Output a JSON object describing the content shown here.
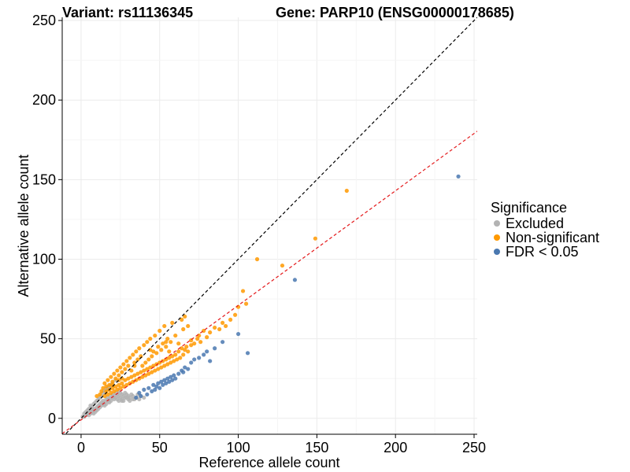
{
  "chart_data": {
    "type": "scatter",
    "title_left": "Variant: rs11136345",
    "title_right": "Gene: PARP10 (ENSG00000178685)",
    "xlabel": "Reference allele count",
    "ylabel": "Alternative allele count",
    "xlim": [
      -12,
      252
    ],
    "ylim": [
      -10,
      252
    ],
    "x_ticks": [
      0,
      50,
      100,
      150,
      200,
      250
    ],
    "y_ticks": [
      0,
      50,
      100,
      150,
      200,
      250
    ],
    "grid": true,
    "legend": {
      "title": "Significance",
      "position": "right",
      "entries": [
        {
          "label": "Excluded",
          "color": "#b3b3b3"
        },
        {
          "label": "Non-significant",
          "color": "#ff9900"
        },
        {
          "label": "FDR < 0.05",
          "color": "#4a78b0"
        }
      ]
    },
    "reference_lines": [
      {
        "name": "identity",
        "slope": 1,
        "intercept": 0,
        "color": "#000000",
        "style": "dashed"
      },
      {
        "name": "fit",
        "slope": 0.72,
        "intercept": -1,
        "color": "#e41a1c",
        "style": "dashed"
      }
    ],
    "series": [
      {
        "name": "Excluded",
        "color": "#b3b3b3",
        "points": [
          [
            2,
            1
          ],
          [
            3,
            2
          ],
          [
            4,
            3
          ],
          [
            5,
            2
          ],
          [
            5,
            4
          ],
          [
            6,
            3
          ],
          [
            6,
            5
          ],
          [
            7,
            4
          ],
          [
            7,
            6
          ],
          [
            8,
            5
          ],
          [
            8,
            3
          ],
          [
            9,
            6
          ],
          [
            9,
            4
          ],
          [
            10,
            7
          ],
          [
            10,
            5
          ],
          [
            11,
            8
          ],
          [
            11,
            6
          ],
          [
            12,
            9
          ],
          [
            12,
            7
          ],
          [
            13,
            10
          ],
          [
            13,
            8
          ],
          [
            14,
            9
          ],
          [
            14,
            11
          ],
          [
            15,
            10
          ],
          [
            15,
            8
          ],
          [
            16,
            12
          ],
          [
            16,
            9
          ],
          [
            17,
            11
          ],
          [
            17,
            13
          ],
          [
            18,
            10
          ],
          [
            18,
            12
          ],
          [
            19,
            14
          ],
          [
            19,
            11
          ],
          [
            20,
            13
          ],
          [
            20,
            15
          ],
          [
            21,
            12
          ],
          [
            21,
            14
          ],
          [
            22,
            13
          ],
          [
            22,
            16
          ],
          [
            23,
            12
          ],
          [
            23,
            15
          ],
          [
            24,
            14
          ],
          [
            24,
            17
          ],
          [
            25,
            13
          ],
          [
            25,
            16
          ],
          [
            26,
            15
          ],
          [
            26,
            12
          ],
          [
            27,
            14
          ],
          [
            28,
            13
          ],
          [
            28,
            16
          ],
          [
            29,
            15
          ],
          [
            30,
            14
          ],
          [
            30,
            12
          ],
          [
            31,
            13
          ],
          [
            32,
            15
          ],
          [
            33,
            14
          ],
          [
            34,
            12
          ],
          [
            35,
            13
          ],
          [
            36,
            15
          ],
          [
            38,
            14
          ],
          [
            8,
            9
          ],
          [
            10,
            11
          ],
          [
            12,
            13
          ],
          [
            14,
            16
          ],
          [
            16,
            18
          ],
          [
            18,
            20
          ],
          [
            20,
            22
          ],
          [
            22,
            24
          ],
          [
            4,
            5
          ],
          [
            6,
            8
          ],
          [
            9,
            10
          ],
          [
            11,
            12
          ],
          [
            13,
            14
          ],
          [
            15,
            17
          ],
          [
            17,
            19
          ],
          [
            19,
            21
          ],
          [
            3,
            4
          ],
          [
            7,
            7
          ],
          [
            24,
            11
          ],
          [
            26,
            11
          ],
          [
            29,
            13
          ],
          [
            31,
            11
          ],
          [
            33,
            12
          ],
          [
            1,
            1
          ],
          [
            2,
            3
          ],
          [
            5,
            6
          ],
          [
            27,
            11
          ],
          [
            37,
            12
          ],
          [
            40,
            13
          ]
        ]
      },
      {
        "name": "Non-significant",
        "color": "#ff9900",
        "points": [
          [
            10,
            14
          ],
          [
            12,
            15
          ],
          [
            13,
            17
          ],
          [
            14,
            19
          ],
          [
            15,
            14
          ],
          [
            15,
            22
          ],
          [
            16,
            17
          ],
          [
            16,
            20
          ],
          [
            17,
            15
          ],
          [
            17,
            24
          ],
          [
            18,
            18
          ],
          [
            18,
            21
          ],
          [
            19,
            16
          ],
          [
            19,
            26
          ],
          [
            20,
            19
          ],
          [
            20,
            23
          ],
          [
            21,
            17
          ],
          [
            21,
            28
          ],
          [
            22,
            20
          ],
          [
            22,
            25
          ],
          [
            23,
            18
          ],
          [
            23,
            30
          ],
          [
            24,
            21
          ],
          [
            24,
            27
          ],
          [
            25,
            19
          ],
          [
            25,
            32
          ],
          [
            26,
            22
          ],
          [
            26,
            29
          ],
          [
            27,
            20
          ],
          [
            27,
            34
          ],
          [
            28,
            24
          ],
          [
            28,
            31
          ],
          [
            29,
            21
          ],
          [
            29,
            36
          ],
          [
            30,
            25
          ],
          [
            30,
            33
          ],
          [
            31,
            22
          ],
          [
            31,
            38
          ],
          [
            32,
            26
          ],
          [
            32,
            30
          ],
          [
            33,
            23
          ],
          [
            33,
            40
          ],
          [
            34,
            27
          ],
          [
            34,
            35
          ],
          [
            35,
            24
          ],
          [
            35,
            42
          ],
          [
            36,
            28
          ],
          [
            36,
            37
          ],
          [
            37,
            25
          ],
          [
            37,
            44
          ],
          [
            38,
            29
          ],
          [
            38,
            39
          ],
          [
            39,
            26
          ],
          [
            39,
            33
          ],
          [
            40,
            30
          ],
          [
            40,
            46
          ],
          [
            41,
            27
          ],
          [
            41,
            35
          ],
          [
            42,
            31
          ],
          [
            42,
            48
          ],
          [
            43,
            28
          ],
          [
            43,
            37
          ],
          [
            44,
            32
          ],
          [
            44,
            50
          ],
          [
            45,
            29
          ],
          [
            45,
            39
          ],
          [
            46,
            33
          ],
          [
            46,
            42
          ],
          [
            47,
            30
          ],
          [
            47,
            52
          ],
          [
            48,
            34
          ],
          [
            48,
            41
          ],
          [
            49,
            31
          ],
          [
            49,
            45
          ],
          [
            50,
            35
          ],
          [
            50,
            55
          ],
          [
            51,
            32
          ],
          [
            51,
            43
          ],
          [
            52,
            36
          ],
          [
            52,
            47
          ],
          [
            53,
            33
          ],
          [
            53,
            58
          ],
          [
            54,
            37
          ],
          [
            54,
            45
          ],
          [
            55,
            34
          ],
          [
            55,
            50
          ],
          [
            56,
            38
          ],
          [
            56,
            42
          ],
          [
            57,
            35
          ],
          [
            57,
            48
          ],
          [
            58,
            39
          ],
          [
            58,
            60
          ],
          [
            59,
            36
          ],
          [
            60,
            40
          ],
          [
            60,
            52
          ],
          [
            61,
            37
          ],
          [
            62,
            42
          ],
          [
            62,
            47
          ],
          [
            63,
            38
          ],
          [
            64,
            44
          ],
          [
            65,
            40
          ],
          [
            65,
            56
          ],
          [
            66,
            43
          ],
          [
            67,
            45
          ],
          [
            68,
            42
          ],
          [
            68,
            58
          ],
          [
            70,
            46
          ],
          [
            70,
            49
          ],
          [
            72,
            47
          ],
          [
            74,
            50
          ],
          [
            75,
            52
          ],
          [
            76,
            48
          ],
          [
            78,
            55
          ],
          [
            80,
            51
          ],
          [
            82,
            54
          ],
          [
            85,
            57
          ],
          [
            88,
            56
          ],
          [
            90,
            60
          ],
          [
            92,
            58
          ],
          [
            95,
            62
          ],
          [
            98,
            65
          ],
          [
            100,
            70
          ],
          [
            103,
            80
          ],
          [
            105,
            72
          ],
          [
            112,
            100
          ],
          [
            128,
            96
          ],
          [
            149,
            113
          ],
          [
            169,
            143
          ],
          [
            66,
            64
          ],
          [
            64,
            62
          ],
          [
            44,
            43
          ],
          [
            24,
            24
          ],
          [
            34,
            33
          ],
          [
            54,
            48
          ],
          [
            20,
            21
          ],
          [
            26,
            25
          ]
        ]
      },
      {
        "name": "FDR < 0.05",
        "color": "#4a78b0",
        "points": [
          [
            35,
            13
          ],
          [
            37,
            16
          ],
          [
            38,
            14
          ],
          [
            40,
            18
          ],
          [
            42,
            15
          ],
          [
            43,
            19
          ],
          [
            45,
            17
          ],
          [
            46,
            21
          ],
          [
            47,
            18
          ],
          [
            48,
            20
          ],
          [
            49,
            22
          ],
          [
            50,
            19
          ],
          [
            51,
            23
          ],
          [
            52,
            21
          ],
          [
            53,
            24
          ],
          [
            54,
            22
          ],
          [
            55,
            25
          ],
          [
            56,
            23
          ],
          [
            57,
            26
          ],
          [
            58,
            24
          ],
          [
            59,
            27
          ],
          [
            60,
            25
          ],
          [
            62,
            28
          ],
          [
            64,
            30
          ],
          [
            65,
            29
          ],
          [
            66,
            32
          ],
          [
            68,
            31
          ],
          [
            70,
            35
          ],
          [
            72,
            37
          ],
          [
            75,
            38
          ],
          [
            78,
            40
          ],
          [
            80,
            42
          ],
          [
            82,
            36
          ],
          [
            85,
            44
          ],
          [
            90,
            48
          ],
          [
            100,
            53
          ],
          [
            106,
            41
          ],
          [
            136,
            87
          ],
          [
            240,
            152
          ]
        ]
      }
    ]
  }
}
